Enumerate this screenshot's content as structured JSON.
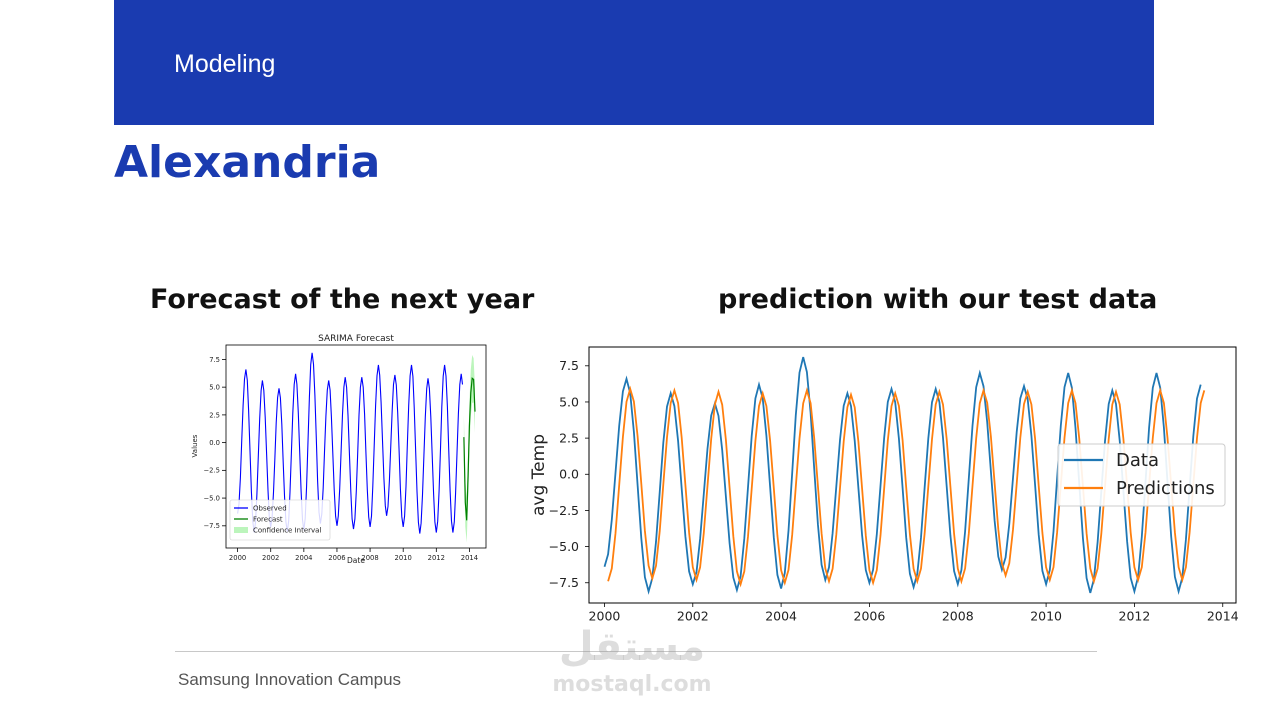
{
  "header": {
    "section_label": "Modeling"
  },
  "slide": {
    "title": "Alexandria",
    "left_heading": "Forecast of the next year",
    "right_heading": "prediction with our test data"
  },
  "footer": {
    "text": "Samsung Innovation Campus"
  },
  "watermark": {
    "logo_text": "مستقل",
    "url": "mostaql.com"
  },
  "colors": {
    "brand_blue": "#1a3bb0",
    "observed": "#0000ff",
    "forecast": "#008000",
    "confidence": "#90ee90",
    "data": "#1f77b4",
    "predictions": "#ff7f0e"
  },
  "chart_data": [
    {
      "type": "line",
      "title": "SARIMA Forecast",
      "xlabel": "Date",
      "ylabel": "Values",
      "xlim": [
        1999.3,
        2015.0
      ],
      "ylim": [
        -9.5,
        8.8
      ],
      "xticks": [
        "2000",
        "2002",
        "2004",
        "2006",
        "2008",
        "2010",
        "2012",
        "2014"
      ],
      "yticks": [
        "7.5",
        "5.0",
        "2.5",
        "0.0",
        "−2.5",
        "−5.0",
        "−7.5"
      ],
      "legend": "lower-left",
      "series": [
        {
          "name": "Observed",
          "peaks": [
            6.6,
            5.6,
            4.9,
            6.2,
            8.1,
            5.6,
            5.9,
            5.9,
            7.0,
            6.1,
            7.0,
            5.8,
            7.0,
            6.2
          ],
          "troughs": [
            -6.4,
            -8.1,
            -7.6,
            -8.0,
            -7.9,
            -7.3,
            -7.5,
            -7.8,
            -7.6,
            -6.6,
            -7.6,
            -8.2,
            -8.1
          ]
        },
        {
          "name": "Forecast",
          "values": [
            0.5,
            -5.4,
            -7.0,
            -3.0,
            1.5,
            4.5,
            5.8,
            5.7,
            2.8
          ]
        },
        {
          "name": "Confidence Interval",
          "upper": [
            2.5,
            -3.4,
            -5.0,
            -0.8,
            3.6,
            6.6,
            7.9,
            7.6,
            4.9
          ],
          "lower": [
            -1.5,
            -7.6,
            -9.0,
            -5.1,
            -0.6,
            2.4,
            3.6,
            3.6,
            0.9
          ]
        }
      ]
    },
    {
      "type": "line",
      "title": "",
      "xlabel": "",
      "ylabel": "avg Temp",
      "xlim": [
        1999.65,
        2014.3
      ],
      "ylim": [
        -8.9,
        8.8
      ],
      "xticks": [
        "2000",
        "2002",
        "2004",
        "2006",
        "2008",
        "2010",
        "2012",
        "2014"
      ],
      "yticks": [
        "7.5",
        "5.0",
        "2.5",
        "0.0",
        "−2.5",
        "−5.0",
        "−7.5"
      ],
      "legend": "center-right",
      "series": [
        {
          "name": "Data",
          "peaks": [
            6.6,
            5.6,
            4.9,
            6.2,
            8.1,
            5.6,
            5.9,
            5.9,
            7.0,
            6.1,
            7.0,
            5.8,
            7.0,
            6.2
          ],
          "troughs": [
            -6.4,
            -8.1,
            -7.6,
            -8.0,
            -7.9,
            -7.3,
            -7.5,
            -7.8,
            -7.6,
            -6.6,
            -7.6,
            -8.2,
            -8.1
          ]
        },
        {
          "name": "Predictions",
          "peaks": [
            5.9,
            5.8,
            5.7,
            5.6,
            5.8,
            5.5,
            5.6,
            5.7,
            5.8,
            5.7,
            5.8,
            5.7,
            5.8,
            5.8
          ],
          "troughs": [
            -7.4,
            -7.2,
            -7.3,
            -7.6,
            -7.5,
            -7.4,
            -7.5,
            -7.4,
            -7.4,
            -7.0,
            -7.3,
            -7.4,
            -7.3
          ]
        }
      ]
    }
  ]
}
